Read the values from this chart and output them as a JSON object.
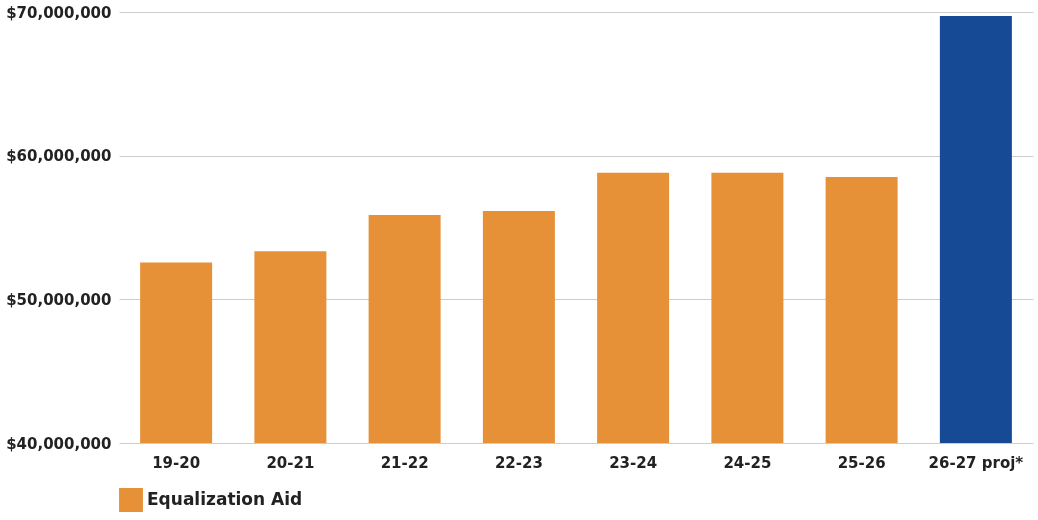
{
  "chart_data": {
    "type": "bar",
    "categories": [
      "19-20",
      "20-21",
      "21-22",
      "22-23",
      "23-24",
      "24-25",
      "25-26",
      "26-27 proj*"
    ],
    "series": [
      {
        "name": "Equalization Aid",
        "color": "#e69138",
        "colors": [
          "#e69138",
          "#e69138",
          "#e69138",
          "#e69138",
          "#e69138",
          "#e69138",
          "#e69138",
          "#174a94"
        ],
        "values": [
          52560000,
          53350000,
          55870000,
          56150000,
          58810000,
          58810000,
          58520000,
          69720000
        ]
      }
    ],
    "ylim": [
      40000000,
      70000000
    ],
    "yticks": [
      {
        "value": 40000000,
        "label": "$40,000,000"
      },
      {
        "value": 50000000,
        "label": "$50,000,000"
      },
      {
        "value": 60000000,
        "label": "$60,000,000"
      },
      {
        "value": 70000000,
        "label": "$70,000,000"
      }
    ],
    "grid": "y",
    "legend": "bottom"
  }
}
